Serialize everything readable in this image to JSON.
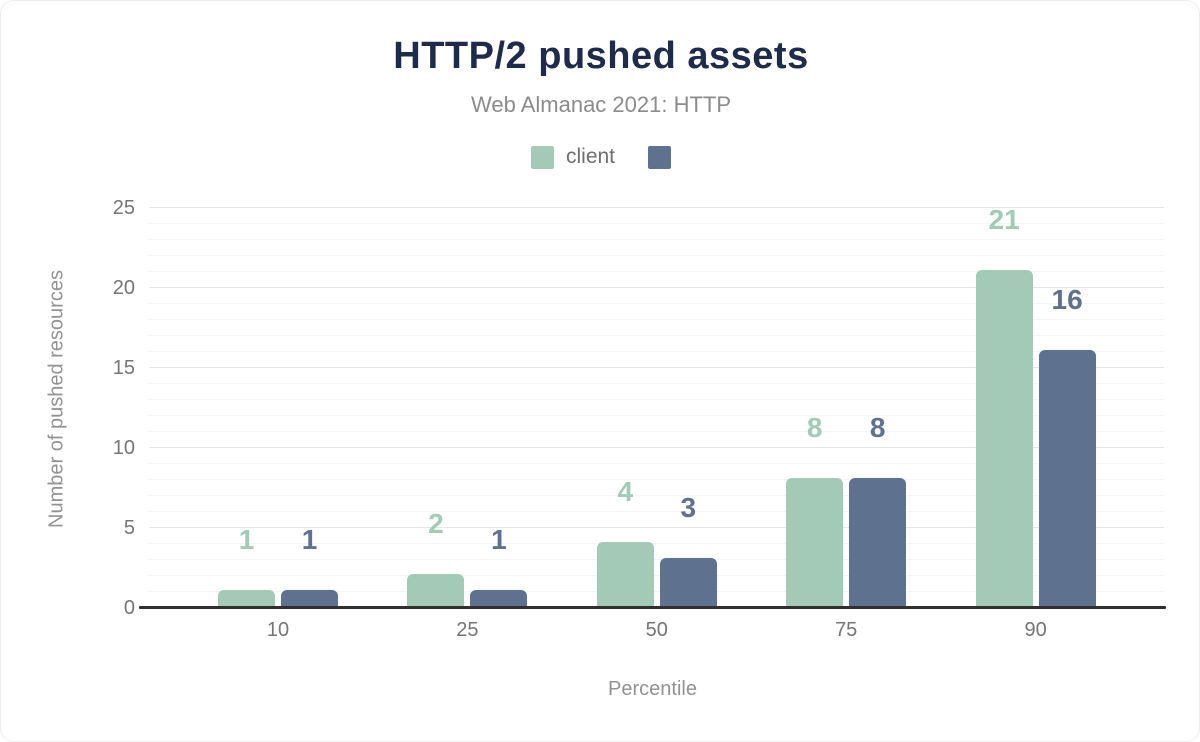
{
  "title": "HTTP/2 pushed assets",
  "subtitle": "Web Almanac 2021: HTTP",
  "legend": [
    {
      "label": "client",
      "color": "#a3c9b7"
    },
    {
      "label": "",
      "color": "#5e7290"
    }
  ],
  "chart_data": {
    "type": "bar",
    "title": "HTTP/2 pushed assets",
    "subtitle": "Web Almanac 2021: HTTP",
    "categories": [
      "10",
      "25",
      "50",
      "75",
      "90"
    ],
    "series": [
      {
        "name": "client",
        "color": "#a3c9b7",
        "values": [
          1,
          2,
          4,
          8,
          21
        ]
      },
      {
        "name": "",
        "color": "#5e7290",
        "values": [
          1,
          1,
          3,
          8,
          16
        ]
      }
    ],
    "value_labels_shown": true,
    "xlabel": "Percentile",
    "ylabel": "Number of pushed resources",
    "ylim": [
      0,
      25
    ],
    "yticks": [
      0,
      5,
      10,
      15,
      20,
      25
    ],
    "grid": "horizontal; minor line every 1 unit, major line every 5 units",
    "legend_position": "top center"
  },
  "colors": {
    "title": "#1e2b4a",
    "subtitle": "#8b8b8b",
    "series_client": "#a3c9b7",
    "series_unnamed": "#5e7290",
    "tick_text": "#757575",
    "axis_title_text": "#929292",
    "grid_minor": "#f4f4f4",
    "grid_major": "#e5e5e5",
    "axis_line": "#2f2f2f",
    "background": "#ffffff"
  }
}
